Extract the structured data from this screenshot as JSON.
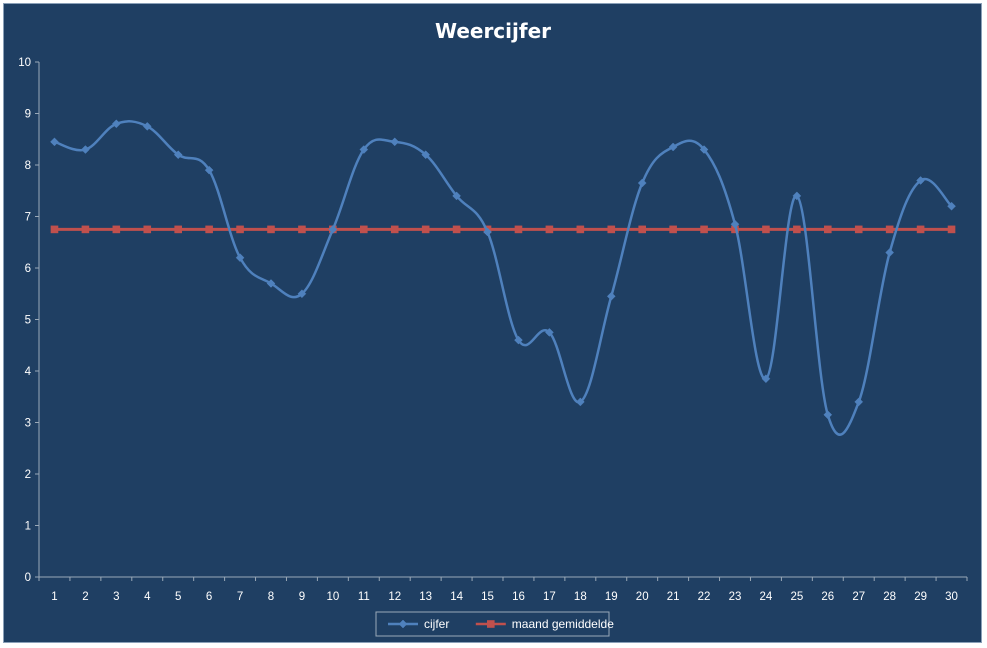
{
  "colors": {
    "background": "#1f3f63",
    "axis": "#9aa9b8",
    "series_cijfer": "#4f81bd",
    "series_gemiddelde": "#c0504d",
    "text": "#ffffff"
  },
  "chart_data": {
    "type": "line",
    "title": "Weercijfer",
    "xlabel": "",
    "ylabel": "",
    "categories": [
      1,
      2,
      3,
      4,
      5,
      6,
      7,
      8,
      9,
      10,
      11,
      12,
      13,
      14,
      15,
      16,
      17,
      18,
      19,
      20,
      21,
      22,
      23,
      24,
      25,
      26,
      27,
      28,
      29,
      30
    ],
    "ylim": [
      0,
      10
    ],
    "yticks": [
      0,
      1,
      2,
      3,
      4,
      5,
      6,
      7,
      8,
      9,
      10
    ],
    "grid": false,
    "legend_position": "bottom",
    "series": [
      {
        "name": "cijfer",
        "marker": "diamond",
        "color": "#4f81bd",
        "smooth": true,
        "values": [
          8.45,
          8.3,
          8.8,
          8.75,
          8.2,
          7.9,
          6.2,
          5.7,
          5.5,
          6.75,
          8.3,
          8.45,
          8.2,
          7.4,
          6.7,
          4.6,
          4.75,
          3.4,
          5.45,
          7.65,
          8.35,
          8.3,
          6.85,
          3.85,
          7.4,
          3.15,
          3.4,
          6.3,
          7.7,
          7.2
        ]
      },
      {
        "name": "maand gemiddelde",
        "marker": "square",
        "color": "#c0504d",
        "smooth": false,
        "values": [
          6.75,
          6.75,
          6.75,
          6.75,
          6.75,
          6.75,
          6.75,
          6.75,
          6.75,
          6.75,
          6.75,
          6.75,
          6.75,
          6.75,
          6.75,
          6.75,
          6.75,
          6.75,
          6.75,
          6.75,
          6.75,
          6.75,
          6.75,
          6.75,
          6.75,
          6.75,
          6.75,
          6.75,
          6.75,
          6.75
        ]
      }
    ]
  }
}
